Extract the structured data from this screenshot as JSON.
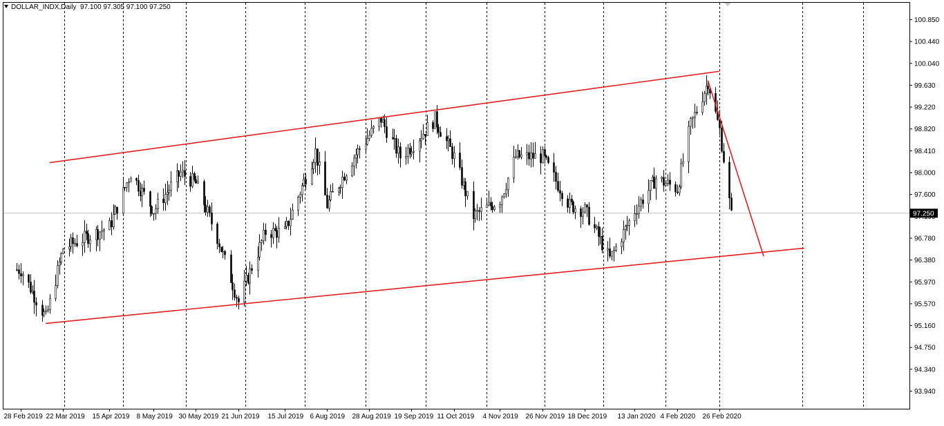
{
  "header": {
    "symbol": "DOLLAR_INDX",
    "timeframe": "Daily",
    "ohlc": "97.100 97.305 97.100 97.250",
    "collapse_icon": "triangle-down-icon"
  },
  "chart_data": {
    "type": "candlestick",
    "title": "DOLLAR_INDX,Daily",
    "x_axis_labels": [
      "28 Feb 2019",
      "22 Mar 2019",
      "15 Apr 2019",
      "8 May 2019",
      "30 May 2019",
      "21 Jun 2019",
      "15 Jul 2019",
      "6 Aug 2019",
      "28 Aug 2019",
      "19 Sep 2019",
      "11 Oct 2019",
      "4 Nov 2019",
      "26 Nov 2019",
      "18 Dec 2019",
      "13 Jan 2020",
      "4 Feb 2020",
      "26 Feb 2020"
    ],
    "y_axis_labels": [
      "100.850",
      "100.440",
      "100.040",
      "99.630",
      "99.220",
      "98.820",
      "98.410",
      "98.000",
      "97.600",
      "97.190",
      "96.780",
      "96.380",
      "95.970",
      "95.570",
      "95.160",
      "94.750",
      "94.340",
      "93.940"
    ],
    "y_range": [
      93.94,
      100.85
    ],
    "current_price_label": "97.250",
    "current_price": 97.25,
    "grid": "vertical-dashed",
    "colors": {
      "candle": "#000000",
      "trendline": "#e31d1d",
      "grid": "#000000",
      "price_line": "#c0c0c0"
    },
    "key_closes": [
      {
        "date": "28 Feb 2019",
        "close": 96.2
      },
      {
        "date": "13 Mar 2019",
        "close": 95.3
      },
      {
        "date": "22 Mar 2019",
        "close": 96.6
      },
      {
        "date": "15 Apr 2019",
        "close": 97.0
      },
      {
        "date": "26 Apr 2019",
        "close": 98.0
      },
      {
        "date": "8 May 2019",
        "close": 97.3
      },
      {
        "date": "22 May 2019",
        "close": 98.0
      },
      {
        "date": "30 May 2019",
        "close": 97.8
      },
      {
        "date": "10 Jun 2019",
        "close": 96.8
      },
      {
        "date": "21 Jun 2019",
        "close": 95.6
      },
      {
        "date": "5 Jul 2019",
        "close": 96.9
      },
      {
        "date": "15 Jul 2019",
        "close": 96.9
      },
      {
        "date": "31 Jul 2019",
        "close": 98.4
      },
      {
        "date": "6 Aug 2019",
        "close": 97.4
      },
      {
        "date": "20 Aug 2019",
        "close": 98.3
      },
      {
        "date": "3 Sep 2019",
        "close": 99.0
      },
      {
        "date": "13 Sep 2019",
        "close": 98.3
      },
      {
        "date": "19 Sep 2019",
        "close": 98.5
      },
      {
        "date": "1 Oct 2019",
        "close": 99.0
      },
      {
        "date": "11 Oct 2019",
        "close": 98.3
      },
      {
        "date": "21 Oct 2019",
        "close": 97.2
      },
      {
        "date": "4 Nov 2019",
        "close": 97.5
      },
      {
        "date": "12 Nov 2019",
        "close": 98.3
      },
      {
        "date": "26 Nov 2019",
        "close": 98.3
      },
      {
        "date": "10 Dec 2019",
        "close": 97.4
      },
      {
        "date": "18 Dec 2019",
        "close": 97.3
      },
      {
        "date": "31 Dec 2019",
        "close": 96.4
      },
      {
        "date": "13 Jan 2020",
        "close": 97.3
      },
      {
        "date": "24 Jan 2020",
        "close": 97.9
      },
      {
        "date": "4 Feb 2020",
        "close": 97.7
      },
      {
        "date": "11 Feb 2020",
        "close": 98.9
      },
      {
        "date": "20 Feb 2020",
        "close": 99.7
      },
      {
        "date": "26 Feb 2020",
        "close": 98.8
      },
      {
        "date": "3 Mar 2020",
        "close": 97.2
      }
    ],
    "trendlines": [
      {
        "name": "channel-top",
        "from": {
          "date": "15 Mar 2019",
          "price": 98.19
        },
        "to": {
          "date": "26 Feb 2020",
          "price": 99.89
        }
      },
      {
        "name": "channel-bottom",
        "from": {
          "date": "13 Mar 2019",
          "price": 95.2
        },
        "to": {
          "date": "10 Apr 2020",
          "price": 96.6
        }
      },
      {
        "name": "projection",
        "from": {
          "date": "20 Feb 2020",
          "price": 99.72
        },
        "to": {
          "date": "20 Mar 2020",
          "price": 96.45
        }
      }
    ]
  }
}
